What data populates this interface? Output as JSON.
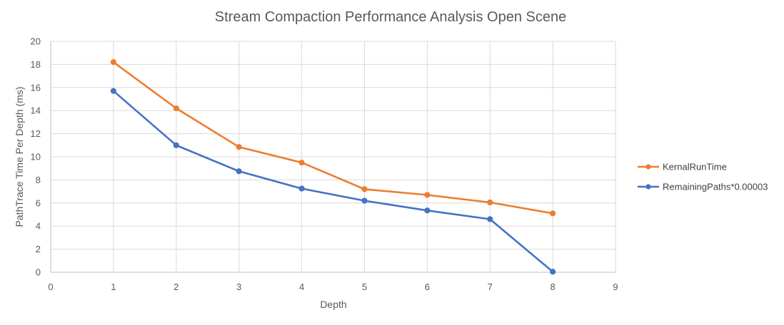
{
  "chart_data": {
    "type": "line",
    "title": "Stream Compaction Performance Analysis Open Scene",
    "xlabel": "Depth",
    "ylabel": "PathTrace Time Per Depth (ms)",
    "xlim": [
      0,
      9
    ],
    "ylim": [
      0,
      20
    ],
    "xticks": [
      0,
      1,
      2,
      3,
      4,
      5,
      6,
      7,
      8,
      9
    ],
    "yticks": [
      0,
      2,
      4,
      6,
      8,
      10,
      12,
      14,
      16,
      18,
      20
    ],
    "grid": true,
    "legend_position": "right",
    "series": [
      {
        "name": "KernalRunTime",
        "color": "#ED7D31",
        "x": [
          1,
          2,
          3,
          4,
          5,
          6,
          7,
          8
        ],
        "y": [
          18.2,
          14.2,
          10.85,
          9.5,
          7.2,
          6.7,
          6.05,
          5.1
        ]
      },
      {
        "name": "RemainingPaths*0.00003",
        "color": "#4472C4",
        "x": [
          1,
          2,
          3,
          4,
          5,
          6,
          7,
          8
        ],
        "y": [
          15.7,
          11.0,
          8.75,
          7.25,
          6.2,
          5.35,
          4.6,
          0.05
        ]
      }
    ]
  }
}
